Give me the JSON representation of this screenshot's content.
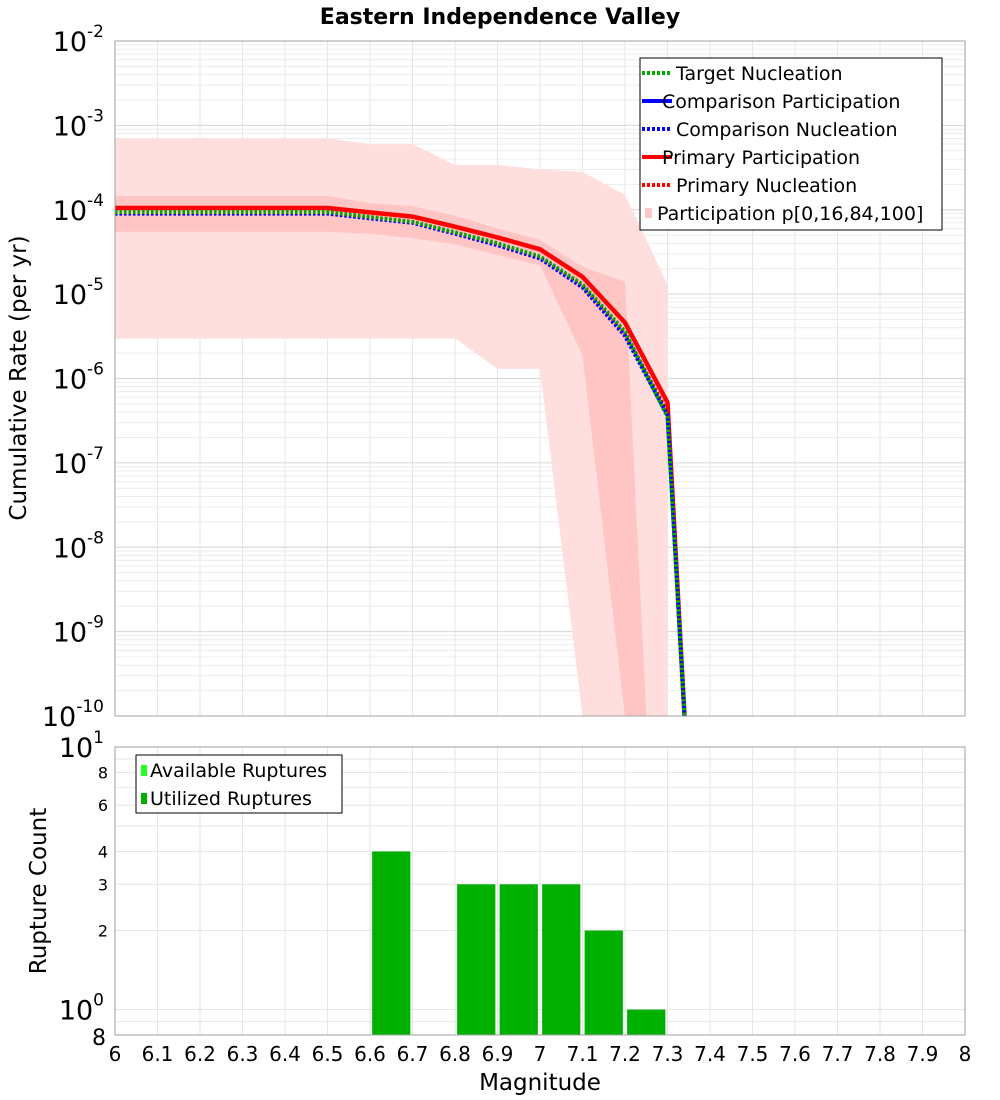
{
  "chart_data": [
    {
      "type": "line",
      "title": "Eastern Independence Valley",
      "xlabel": "",
      "ylabel": "Cumulative Rate (per yr)",
      "xlim": [
        6,
        8
      ],
      "ylim": [
        1e-10,
        0.01
      ],
      "yscale": "log",
      "grid": true,
      "legend_position": "top-right",
      "y_ticks": [
        {
          "mantissa": "10",
          "exp": "-2"
        },
        {
          "mantissa": "10",
          "exp": "-3"
        },
        {
          "mantissa": "10",
          "exp": "-4"
        },
        {
          "mantissa": "10",
          "exp": "-5"
        },
        {
          "mantissa": "10",
          "exp": "-6"
        },
        {
          "mantissa": "10",
          "exp": "-7"
        },
        {
          "mantissa": "10",
          "exp": "-8"
        },
        {
          "mantissa": "10",
          "exp": "-9"
        },
        {
          "mantissa": "10",
          "exp": "-10"
        }
      ],
      "legend": [
        {
          "label": "Target Nucleation",
          "color": "#00aa00",
          "style": "dotted"
        },
        {
          "label": "Comparison Participation",
          "color": "#0000ff",
          "style": "solid"
        },
        {
          "label": "Comparison Nucleation",
          "color": "#0000ff",
          "style": "dotted"
        },
        {
          "label": "Primary Participation",
          "color": "#ff0000",
          "style": "solid"
        },
        {
          "label": "Primary Nucleation",
          "color": "#ff0000",
          "style": "dotted"
        },
        {
          "label": "Participation p[0,16,84,100]",
          "color": "#ffc8c8",
          "style": "band"
        }
      ],
      "series": [
        {
          "name": "Primary Participation",
          "color": "#ff0000",
          "style": "solid",
          "x": [
            6.0,
            6.1,
            6.2,
            6.3,
            6.4,
            6.5,
            6.6,
            6.7,
            6.8,
            6.9,
            7.0,
            7.1,
            7.2,
            7.3,
            7.34
          ],
          "y": [
            0.000105,
            0.000105,
            0.000105,
            0.000105,
            0.000105,
            0.000105,
            9.3e-05,
            8.3e-05,
            6.3e-05,
            4.7e-05,
            3.4e-05,
            1.6e-05,
            4.6e-06,
            5.2e-07,
            1e-10
          ]
        },
        {
          "name": "Primary Nucleation",
          "color": "#ff0000",
          "style": "dotted",
          "x": [
            6.0,
            6.1,
            6.2,
            6.3,
            6.4,
            6.5,
            6.6,
            6.7,
            6.8,
            6.9,
            7.0,
            7.1,
            7.2,
            7.3,
            7.34
          ],
          "y": [
            9.2e-05,
            9.2e-05,
            9.2e-05,
            9.2e-05,
            9.2e-05,
            9.2e-05,
            8.1e-05,
            7.1e-05,
            5.3e-05,
            3.9e-05,
            2.7e-05,
            1.25e-05,
            3.4e-06,
            4e-07,
            1e-10
          ]
        },
        {
          "name": "Comparison Nucleation",
          "color": "#0000ff",
          "style": "dotted",
          "x": [
            6.0,
            6.1,
            6.2,
            6.3,
            6.4,
            6.5,
            6.6,
            6.7,
            6.8,
            6.9,
            7.0,
            7.1,
            7.2,
            7.3,
            7.34
          ],
          "y": [
            9e-05,
            9e-05,
            9e-05,
            9e-05,
            9e-05,
            9e-05,
            7.9e-05,
            7e-05,
            5.2e-05,
            3.8e-05,
            2.65e-05,
            1.2e-05,
            3.2e-06,
            3.7e-07,
            1e-10
          ]
        },
        {
          "name": "Target Nucleation",
          "color": "#00aa00",
          "style": "dotted",
          "x": [
            6.0,
            6.1,
            6.2,
            6.3,
            6.4,
            6.5,
            6.6,
            6.7,
            6.8,
            6.9,
            7.0,
            7.1,
            7.2,
            7.3,
            7.34
          ],
          "y": [
            9.4e-05,
            9.4e-05,
            9.4e-05,
            9.4e-05,
            9.4e-05,
            9.4e-05,
            8.2e-05,
            7.2e-05,
            5.4e-05,
            4e-05,
            2.8e-05,
            1.3e-05,
            3.6e-06,
            3.5e-07,
            1e-10
          ]
        }
      ],
      "bands": [
        {
          "name": "p0-p100",
          "x": [
            6.0,
            6.5,
            6.6,
            6.7,
            6.8,
            6.9,
            7.0,
            7.1,
            7.2,
            7.3,
            7.3
          ],
          "upper": [
            0.0007,
            0.0007,
            0.0006,
            0.0006,
            0.00034,
            0.00034,
            0.0003,
            0.00028,
            0.00015,
            1.3e-05,
            1e-10
          ],
          "lower": [
            3e-06,
            3e-06,
            3e-06,
            3e-06,
            3e-06,
            1.3e-06,
            1.3e-06,
            1e-10,
            1e-10,
            1e-10,
            1e-10
          ]
        },
        {
          "name": "p16-p84",
          "x": [
            6.0,
            6.5,
            6.6,
            6.7,
            6.8,
            6.9,
            7.0,
            7.1,
            7.2,
            7.25
          ],
          "upper": [
            0.000145,
            0.000145,
            0.00012,
            0.00011,
            8.5e-05,
            6e-05,
            4.4e-05,
            2.1e-05,
            1.4e-05,
            1e-10
          ],
          "lower": [
            5.5e-05,
            5.5e-05,
            5.2e-05,
            4.6e-05,
            3.9e-05,
            2.9e-05,
            2.2e-05,
            1.9e-06,
            1e-10,
            1e-10
          ]
        }
      ]
    },
    {
      "type": "bar",
      "title": "",
      "xlabel": "Magnitude",
      "ylabel": "Rupture Count",
      "xlim": [
        6,
        8
      ],
      "ylim": [
        0.8,
        10
      ],
      "yscale": "log",
      "grid": true,
      "legend_position": "top-left",
      "x_tick_labels": [
        "6",
        "6.1",
        "6.2",
        "6.3",
        "6.4",
        "6.5",
        "6.6",
        "6.7",
        "6.8",
        "6.9",
        "7",
        "7.1",
        "7.2",
        "7.3",
        "7.4",
        "7.5",
        "7.6",
        "7.7",
        "7.8",
        "7.9",
        "8"
      ],
      "y_minor_labels": [
        "8",
        "6",
        "4",
        "3",
        "2",
        "8"
      ],
      "y_major_labels": [
        {
          "mantissa": "10",
          "exp": "1"
        },
        {
          "mantissa": "10",
          "exp": "0"
        }
      ],
      "legend": [
        {
          "label": "Available Ruptures",
          "color": "#22ff22"
        },
        {
          "label": "Utilized Ruptures",
          "color": "#00b000"
        }
      ],
      "series": [
        {
          "name": "Utilized Ruptures",
          "color": "#00b000",
          "x": [
            6.65,
            6.85,
            6.95,
            7.05,
            7.15,
            7.25
          ],
          "values": [
            4,
            3,
            3,
            3,
            2,
            1
          ]
        }
      ]
    }
  ]
}
